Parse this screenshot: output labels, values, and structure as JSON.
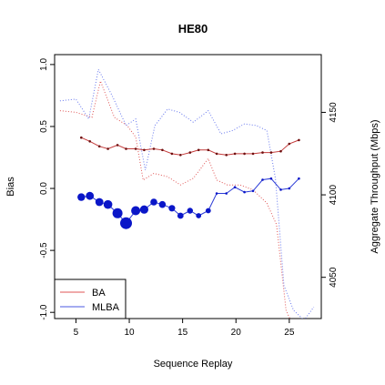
{
  "chart_data": {
    "type": "line",
    "title": "HE80",
    "xlabel": "Sequence Replay",
    "ylabel": "Bias",
    "y2label": "Aggregate Throughput (Mbps)",
    "xlim": [
      3,
      28
    ],
    "ylim": [
      -1.05,
      1.08
    ],
    "y2lim": [
      4025,
      4185
    ],
    "xticks": [
      5,
      10,
      15,
      20,
      25
    ],
    "yticks": [
      -1.0,
      -0.5,
      0.0,
      0.5,
      1.0
    ],
    "ytick_labels": [
      "-1.0",
      "-0.5",
      "0.0",
      "0.5",
      "1.0"
    ],
    "y2ticks": [
      4050,
      4100,
      4150
    ],
    "legend": {
      "position": "bottom-left",
      "entries": [
        {
          "label": "BA",
          "color": "#e05555"
        },
        {
          "label": "MLBA",
          "color": "#4a5ae0"
        }
      ]
    },
    "bias_series": [
      {
        "name": "BA",
        "color": "#c43b3b",
        "point_color": "#6e0f0f",
        "x": [
          5.5,
          6.3,
          7.2,
          8.0,
          8.9,
          9.7,
          10.6,
          11.4,
          12.3,
          13.1,
          14.0,
          14.8,
          15.7,
          16.5,
          17.4,
          18.2,
          19.1,
          19.9,
          20.8,
          21.6,
          22.5,
          23.3,
          24.2,
          25.0,
          25.9
        ],
        "y": [
          0.41,
          0.38,
          0.34,
          0.32,
          0.35,
          0.32,
          0.32,
          0.31,
          0.32,
          0.31,
          0.28,
          0.27,
          0.29,
          0.31,
          0.31,
          0.28,
          0.27,
          0.28,
          0.28,
          0.28,
          0.29,
          0.29,
          0.3,
          0.36,
          0.39
        ]
      },
      {
        "name": "MLBA",
        "color": "#2b3bd6",
        "point_color": "#0a16c8",
        "x": [
          5.5,
          6.3,
          7.2,
          8.0,
          8.9,
          9.7,
          10.6,
          11.4,
          12.3,
          13.1,
          14.0,
          14.8,
          15.7,
          16.5,
          17.4,
          18.2,
          19.1,
          19.9,
          20.8,
          21.6,
          22.5,
          23.3,
          24.2,
          25.0,
          25.9
        ],
        "y": [
          -0.07,
          -0.06,
          -0.11,
          -0.13,
          -0.2,
          -0.28,
          -0.18,
          -0.17,
          -0.11,
          -0.13,
          -0.16,
          -0.22,
          -0.18,
          -0.22,
          -0.18,
          -0.04,
          -0.04,
          0.01,
          -0.03,
          -0.02,
          0.07,
          0.08,
          -0.01,
          0.0,
          0.08
        ],
        "point_sizes": [
          1.0,
          1.05,
          1.05,
          1.15,
          1.3,
          1.55,
          1.2,
          1.1,
          0.9,
          0.9,
          0.85,
          0.8,
          0.75,
          0.7,
          0.7,
          0.3,
          0.3,
          0.3,
          0.3,
          0.3,
          0.3,
          0.3,
          0.3,
          0.3,
          0.3
        ]
      }
    ],
    "throughput_series": [
      {
        "name": "BA",
        "color": "#e05555",
        "dash": "1,2",
        "x": [
          3.5,
          5.0,
          6.5,
          7.3,
          8.6,
          9.8,
          10.6,
          11.3,
          12.3,
          13.6,
          14.8,
          16.0,
          17.4,
          18.2,
          19.2,
          20.4,
          21.6,
          22.9,
          23.8,
          24.7,
          25.4,
          26.3,
          27.2
        ],
        "y": [
          4151,
          4150,
          4147,
          4169,
          4147,
          4142,
          4135,
          4109,
          4113,
          4111,
          4106,
          4110,
          4122,
          4109,
          4106,
          4106,
          4103,
          4095,
          4082,
          4030,
          4020,
          4016,
          4023
        ]
      },
      {
        "name": "MLBA",
        "color": "#6677ee",
        "dash": "1,2",
        "x": [
          3.5,
          5.0,
          6.2,
          7.1,
          8.4,
          9.7,
          10.6,
          11.5,
          12.4,
          13.6,
          14.7,
          16.0,
          17.4,
          18.6,
          19.7,
          20.8,
          21.9,
          22.9,
          23.7,
          24.5,
          25.4,
          26.4,
          27.3
        ],
        "y": [
          4157,
          4158,
          4146,
          4176,
          4160,
          4142,
          4146,
          4115,
          4142,
          4152,
          4150,
          4144,
          4151,
          4137,
          4139,
          4143,
          4142,
          4139,
          4110,
          4045,
          4030,
          4024,
          4032
        ]
      }
    ]
  }
}
